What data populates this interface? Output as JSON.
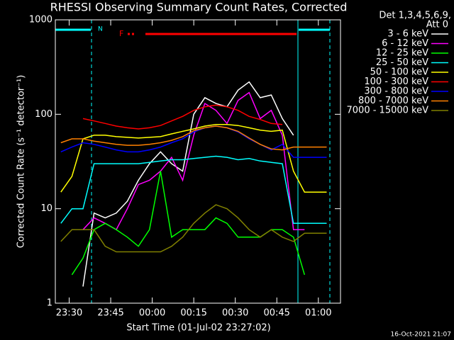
{
  "chart_data": {
    "type": "line",
    "title": "RHESSI Observing Summary Count Rates, Corrected",
    "x_label": "Start Time (01-Jul-02 23:27:02)",
    "y_label": "Corrected Count Rate (s⁻¹ detector⁻¹)",
    "legend_header": [
      "Det 1,3,4,5,6,9,",
      "Att 0"
    ],
    "legend": "right",
    "timestamp": "16-Oct-2021 21:07",
    "annotations": [
      "N",
      "F"
    ],
    "log_y": true,
    "x": [
      27,
      31,
      35,
      39,
      43,
      47,
      51,
      55,
      59,
      63,
      67,
      71,
      75,
      79,
      83,
      87,
      91,
      95,
      99,
      103,
      107,
      111,
      115,
      119,
      123
    ],
    "xlim": [
      25,
      128
    ],
    "xticks": [
      {
        "value": 30,
        "label": "23:30"
      },
      {
        "value": 45,
        "label": "23:45"
      },
      {
        "value": 60,
        "label": "00:00"
      },
      {
        "value": 75,
        "label": "00:15"
      },
      {
        "value": 90,
        "label": "00:30"
      },
      {
        "value": 105,
        "label": "00:45"
      },
      {
        "value": 120,
        "label": "01:00"
      }
    ],
    "ylim": [
      1,
      1000
    ],
    "yticks": [
      1,
      10,
      100,
      1000
    ],
    "series": [
      {
        "name": "3 - 6 keV",
        "color": "#ffffff",
        "values": [
          null,
          null,
          1.5,
          9,
          8,
          9,
          12,
          20,
          30,
          40,
          30,
          25,
          100,
          150,
          130,
          120,
          180,
          220,
          150,
          160,
          90,
          60,
          null,
          null,
          null
        ]
      },
      {
        "name": "6 - 12 keV",
        "color": "#ff00ff",
        "values": [
          null,
          null,
          6,
          8,
          7,
          6,
          10,
          18,
          20,
          25,
          35,
          20,
          60,
          130,
          110,
          80,
          140,
          170,
          90,
          110,
          60,
          6,
          6,
          null,
          null
        ]
      },
      {
        "name": "12 - 25 keV",
        "color": "#00ff00",
        "values": [
          null,
          2,
          3,
          6,
          7,
          6,
          5,
          4,
          6,
          25,
          5,
          6,
          6,
          6,
          8,
          7,
          5,
          5,
          5,
          6,
          6,
          5,
          2,
          null,
          null
        ]
      },
      {
        "name": "25 - 50 keV",
        "color": "#00ffff",
        "values": [
          7,
          10,
          10,
          30,
          30,
          30,
          30,
          30,
          31,
          32,
          33,
          33,
          34,
          35,
          36,
          35,
          33,
          34,
          32,
          31,
          30,
          7,
          7,
          7,
          7
        ]
      },
      {
        "name": "50 - 100 keV",
        "color": "#ffff00",
        "values": [
          15,
          22,
          55,
          60,
          60,
          58,
          57,
          56,
          57,
          58,
          62,
          66,
          70,
          75,
          78,
          78,
          76,
          72,
          68,
          66,
          68,
          25,
          15,
          15,
          15
        ]
      },
      {
        "name": "100 - 300 keV",
        "color": "#ff0000",
        "values": [
          null,
          null,
          90,
          85,
          80,
          75,
          72,
          70,
          72,
          76,
          85,
          95,
          110,
          120,
          125,
          120,
          110,
          95,
          88,
          80,
          78,
          null,
          null,
          null,
          null
        ]
      },
      {
        "name": "300 - 800 keV",
        "color": "#0000ff",
        "values": [
          40,
          45,
          50,
          48,
          45,
          42,
          40,
          40,
          42,
          45,
          50,
          55,
          65,
          72,
          75,
          72,
          65,
          55,
          48,
          42,
          48,
          35,
          35,
          35,
          35
        ]
      },
      {
        "name": "800 - 7000 keV",
        "color": "#ff8000",
        "values": [
          50,
          55,
          55,
          52,
          50,
          48,
          47,
          47,
          48,
          50,
          53,
          58,
          67,
          72,
          75,
          72,
          66,
          56,
          48,
          43,
          42,
          45,
          45,
          45,
          45
        ]
      },
      {
        "name": "7000 - 15000 keV",
        "color": "#808000",
        "values": [
          4.5,
          6,
          6,
          6,
          4,
          3.5,
          3.5,
          3.5,
          3.5,
          3.5,
          4,
          5,
          7,
          9,
          11,
          10,
          8,
          6,
          5,
          6,
          5,
          4.5,
          5.5,
          5.5,
          5.5
        ]
      }
    ]
  }
}
